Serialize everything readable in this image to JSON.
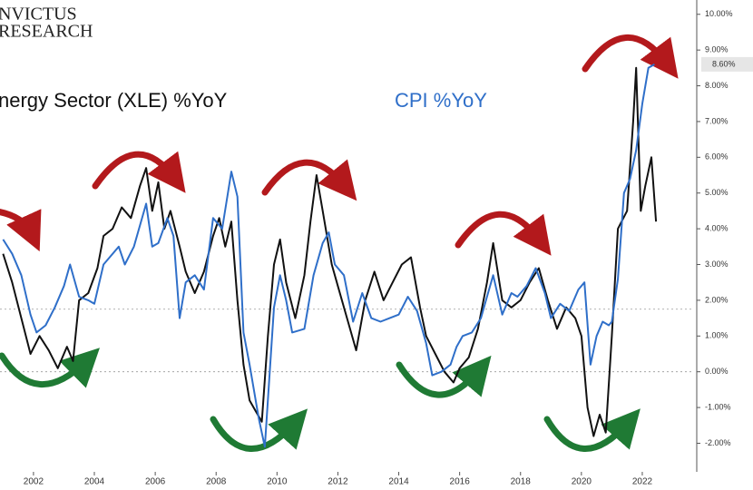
{
  "chart_data": {
    "type": "line",
    "logo": [
      "NVICTUS",
      "RESEARCH"
    ],
    "xlim": [
      2000.9,
      2023.7
    ],
    "xticks": [
      2002,
      2004,
      2006,
      2008,
      2010,
      2012,
      2014,
      2016,
      2018,
      2020,
      2022
    ],
    "ylim": [
      -2.8,
      10.4
    ],
    "yticks": [
      {
        "value": -2,
        "label": "-2.00%"
      },
      {
        "value": -1,
        "label": "-1.00%"
      },
      {
        "value": 0,
        "label": "0.00%"
      },
      {
        "value": 1,
        "label": "1.00%"
      },
      {
        "value": 2,
        "label": "2.00%"
      },
      {
        "value": 3,
        "label": "3.00%"
      },
      {
        "value": 4,
        "label": "4.00%"
      },
      {
        "value": 5,
        "label": "5.00%"
      },
      {
        "value": 6,
        "label": "6.00%"
      },
      {
        "value": 7,
        "label": "7.00%"
      },
      {
        "value": 8,
        "label": "8.00%"
      },
      {
        "value": 9,
        "label": "9.00%"
      },
      {
        "value": 10,
        "label": "10.00%"
      }
    ],
    "hlines": [
      0,
      1.75
    ],
    "last_value": {
      "value": 8.6,
      "label": "8.60%"
    },
    "series": [
      {
        "name": "nergy Sector (XLE) %YoY",
        "color": "#111111",
        "x": [
          2001.0,
          2001.3,
          2001.6,
          2001.9,
          2002.2,
          2002.5,
          2002.8,
          2003.1,
          2003.3,
          2003.5,
          2003.8,
          2004.1,
          2004.3,
          2004.6,
          2004.9,
          2005.2,
          2005.5,
          2005.7,
          2005.9,
          2006.1,
          2006.3,
          2006.5,
          2006.8,
          2007.0,
          2007.3,
          2007.6,
          2007.9,
          2008.1,
          2008.3,
          2008.5,
          2008.7,
          2008.9,
          2009.1,
          2009.3,
          2009.5,
          2009.7,
          2009.9,
          2010.1,
          2010.3,
          2010.6,
          2010.9,
          2011.1,
          2011.3,
          2011.5,
          2011.8,
          2012.0,
          2012.3,
          2012.6,
          2012.9,
          2013.2,
          2013.5,
          2013.8,
          2014.1,
          2014.4,
          2014.7,
          2014.9,
          2015.2,
          2015.5,
          2015.8,
          2016.0,
          2016.3,
          2016.6,
          2016.9,
          2017.1,
          2017.4,
          2017.7,
          2018.0,
          2018.3,
          2018.6,
          2018.9,
          2019.2,
          2019.5,
          2019.8,
          2020.0,
          2020.2,
          2020.4,
          2020.6,
          2020.8,
          2021.0,
          2021.2,
          2021.5,
          2021.7,
          2021.8,
          2021.95,
          2022.1,
          2022.3,
          2022.45
        ],
        "values": [
          3.3,
          2.5,
          1.5,
          0.5,
          1.0,
          0.6,
          0.1,
          0.7,
          0.3,
          2.0,
          2.2,
          2.9,
          3.8,
          4.0,
          4.6,
          4.3,
          5.2,
          5.7,
          4.5,
          5.3,
          4.0,
          4.5,
          3.5,
          2.8,
          2.2,
          2.8,
          3.8,
          4.3,
          3.5,
          4.2,
          2.0,
          0.2,
          -0.8,
          -1.1,
          -1.4,
          1.0,
          3.0,
          3.7,
          2.5,
          1.5,
          2.7,
          4.2,
          5.5,
          4.5,
          3.0,
          2.4,
          1.5,
          0.6,
          2.0,
          2.8,
          2.0,
          2.5,
          3.0,
          3.2,
          1.8,
          1.0,
          0.5,
          0.0,
          -0.3,
          0.1,
          0.4,
          1.2,
          2.5,
          3.6,
          2.0,
          1.8,
          2.0,
          2.5,
          2.9,
          2.0,
          1.2,
          1.8,
          1.5,
          1.0,
          -1.0,
          -1.8,
          -1.2,
          -1.7,
          1.0,
          4.0,
          4.5,
          7.0,
          8.5,
          4.5,
          5.2,
          6.0,
          4.2
        ]
      },
      {
        "name": "CPI %YoY",
        "color": "#2f6fc9",
        "x": [
          2001.0,
          2001.3,
          2001.6,
          2001.9,
          2002.1,
          2002.4,
          2002.7,
          2003.0,
          2003.2,
          2003.5,
          2003.8,
          2004.0,
          2004.3,
          2004.5,
          2004.8,
          2005.0,
          2005.3,
          2005.7,
          2005.9,
          2006.1,
          2006.4,
          2006.6,
          2006.8,
          2007.0,
          2007.3,
          2007.6,
          2007.9,
          2008.2,
          2008.5,
          2008.7,
          2008.9,
          2009.1,
          2009.4,
          2009.6,
          2009.9,
          2010.1,
          2010.3,
          2010.5,
          2010.9,
          2011.2,
          2011.5,
          2011.7,
          2011.9,
          2012.2,
          2012.5,
          2012.8,
          2013.1,
          2013.4,
          2013.7,
          2014.0,
          2014.3,
          2014.6,
          2014.9,
          2015.1,
          2015.4,
          2015.7,
          2015.9,
          2016.1,
          2016.4,
          2016.7,
          2016.9,
          2017.1,
          2017.4,
          2017.7,
          2017.9,
          2018.2,
          2018.5,
          2018.8,
          2019.0,
          2019.3,
          2019.6,
          2019.9,
          2020.1,
          2020.3,
          2020.5,
          2020.7,
          2020.9,
          2021.0,
          2021.2,
          2021.4,
          2021.6,
          2021.8,
          2022.0,
          2022.2,
          2022.4
        ],
        "values": [
          3.7,
          3.3,
          2.7,
          1.6,
          1.1,
          1.3,
          1.8,
          2.4,
          3.0,
          2.1,
          2.0,
          1.9,
          3.0,
          3.2,
          3.5,
          3.0,
          3.5,
          4.7,
          3.5,
          3.6,
          4.3,
          3.8,
          1.5,
          2.5,
          2.7,
          2.3,
          4.3,
          4.0,
          5.6,
          4.9,
          1.1,
          0.2,
          -1.3,
          -2.1,
          1.8,
          2.7,
          2.0,
          1.1,
          1.2,
          2.7,
          3.6,
          3.9,
          3.0,
          2.7,
          1.4,
          2.2,
          1.5,
          1.4,
          1.5,
          1.6,
          2.1,
          1.7,
          0.8,
          -0.1,
          0.0,
          0.2,
          0.7,
          1.0,
          1.1,
          1.5,
          2.1,
          2.7,
          1.6,
          2.2,
          2.1,
          2.4,
          2.9,
          2.2,
          1.5,
          1.9,
          1.7,
          2.3,
          2.5,
          0.2,
          1.0,
          1.4,
          1.3,
          1.4,
          2.6,
          5.0,
          5.4,
          6.2,
          7.5,
          8.5,
          8.6
        ]
      }
    ]
  }
}
